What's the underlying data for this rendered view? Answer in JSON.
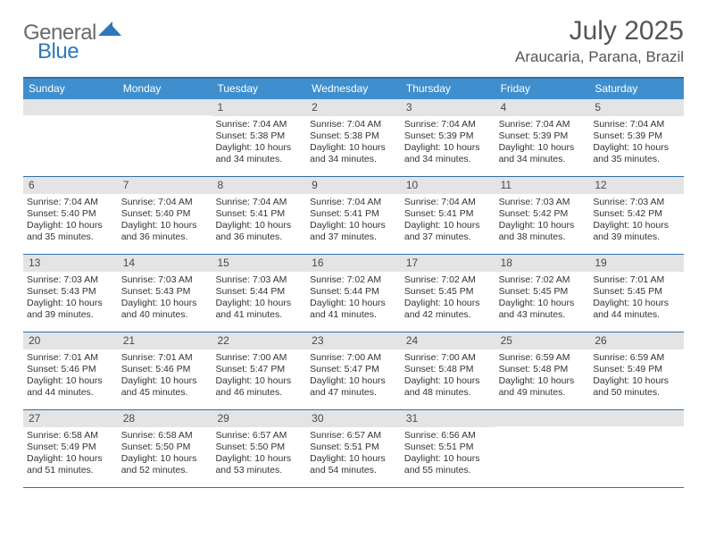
{
  "logo": {
    "general": "General",
    "blue": "Blue",
    "tri_color": "#2f77bb"
  },
  "header": {
    "month_title": "July 2025",
    "location": "Araucaria, Parana, Brazil"
  },
  "colors": {
    "header_bar": "#3f8fce",
    "rule": "#2f6fa8",
    "daynum_bg": "#e4e4e4",
    "dow_text": "#ffffff",
    "title_text": "#555555",
    "body_text": "#333333"
  },
  "dow": [
    "Sunday",
    "Monday",
    "Tuesday",
    "Wednesday",
    "Thursday",
    "Friday",
    "Saturday"
  ],
  "weeks": [
    [
      null,
      null,
      {
        "n": "1",
        "sr": "Sunrise: 7:04 AM",
        "ss": "Sunset: 5:38 PM",
        "dl": "Daylight: 10 hours and 34 minutes."
      },
      {
        "n": "2",
        "sr": "Sunrise: 7:04 AM",
        "ss": "Sunset: 5:38 PM",
        "dl": "Daylight: 10 hours and 34 minutes."
      },
      {
        "n": "3",
        "sr": "Sunrise: 7:04 AM",
        "ss": "Sunset: 5:39 PM",
        "dl": "Daylight: 10 hours and 34 minutes."
      },
      {
        "n": "4",
        "sr": "Sunrise: 7:04 AM",
        "ss": "Sunset: 5:39 PM",
        "dl": "Daylight: 10 hours and 34 minutes."
      },
      {
        "n": "5",
        "sr": "Sunrise: 7:04 AM",
        "ss": "Sunset: 5:39 PM",
        "dl": "Daylight: 10 hours and 35 minutes."
      }
    ],
    [
      {
        "n": "6",
        "sr": "Sunrise: 7:04 AM",
        "ss": "Sunset: 5:40 PM",
        "dl": "Daylight: 10 hours and 35 minutes."
      },
      {
        "n": "7",
        "sr": "Sunrise: 7:04 AM",
        "ss": "Sunset: 5:40 PM",
        "dl": "Daylight: 10 hours and 36 minutes."
      },
      {
        "n": "8",
        "sr": "Sunrise: 7:04 AM",
        "ss": "Sunset: 5:41 PM",
        "dl": "Daylight: 10 hours and 36 minutes."
      },
      {
        "n": "9",
        "sr": "Sunrise: 7:04 AM",
        "ss": "Sunset: 5:41 PM",
        "dl": "Daylight: 10 hours and 37 minutes."
      },
      {
        "n": "10",
        "sr": "Sunrise: 7:04 AM",
        "ss": "Sunset: 5:41 PM",
        "dl": "Daylight: 10 hours and 37 minutes."
      },
      {
        "n": "11",
        "sr": "Sunrise: 7:03 AM",
        "ss": "Sunset: 5:42 PM",
        "dl": "Daylight: 10 hours and 38 minutes."
      },
      {
        "n": "12",
        "sr": "Sunrise: 7:03 AM",
        "ss": "Sunset: 5:42 PM",
        "dl": "Daylight: 10 hours and 39 minutes."
      }
    ],
    [
      {
        "n": "13",
        "sr": "Sunrise: 7:03 AM",
        "ss": "Sunset: 5:43 PM",
        "dl": "Daylight: 10 hours and 39 minutes."
      },
      {
        "n": "14",
        "sr": "Sunrise: 7:03 AM",
        "ss": "Sunset: 5:43 PM",
        "dl": "Daylight: 10 hours and 40 minutes."
      },
      {
        "n": "15",
        "sr": "Sunrise: 7:03 AM",
        "ss": "Sunset: 5:44 PM",
        "dl": "Daylight: 10 hours and 41 minutes."
      },
      {
        "n": "16",
        "sr": "Sunrise: 7:02 AM",
        "ss": "Sunset: 5:44 PM",
        "dl": "Daylight: 10 hours and 41 minutes."
      },
      {
        "n": "17",
        "sr": "Sunrise: 7:02 AM",
        "ss": "Sunset: 5:45 PM",
        "dl": "Daylight: 10 hours and 42 minutes."
      },
      {
        "n": "18",
        "sr": "Sunrise: 7:02 AM",
        "ss": "Sunset: 5:45 PM",
        "dl": "Daylight: 10 hours and 43 minutes."
      },
      {
        "n": "19",
        "sr": "Sunrise: 7:01 AM",
        "ss": "Sunset: 5:45 PM",
        "dl": "Daylight: 10 hours and 44 minutes."
      }
    ],
    [
      {
        "n": "20",
        "sr": "Sunrise: 7:01 AM",
        "ss": "Sunset: 5:46 PM",
        "dl": "Daylight: 10 hours and 44 minutes."
      },
      {
        "n": "21",
        "sr": "Sunrise: 7:01 AM",
        "ss": "Sunset: 5:46 PM",
        "dl": "Daylight: 10 hours and 45 minutes."
      },
      {
        "n": "22",
        "sr": "Sunrise: 7:00 AM",
        "ss": "Sunset: 5:47 PM",
        "dl": "Daylight: 10 hours and 46 minutes."
      },
      {
        "n": "23",
        "sr": "Sunrise: 7:00 AM",
        "ss": "Sunset: 5:47 PM",
        "dl": "Daylight: 10 hours and 47 minutes."
      },
      {
        "n": "24",
        "sr": "Sunrise: 7:00 AM",
        "ss": "Sunset: 5:48 PM",
        "dl": "Daylight: 10 hours and 48 minutes."
      },
      {
        "n": "25",
        "sr": "Sunrise: 6:59 AM",
        "ss": "Sunset: 5:48 PM",
        "dl": "Daylight: 10 hours and 49 minutes."
      },
      {
        "n": "26",
        "sr": "Sunrise: 6:59 AM",
        "ss": "Sunset: 5:49 PM",
        "dl": "Daylight: 10 hours and 50 minutes."
      }
    ],
    [
      {
        "n": "27",
        "sr": "Sunrise: 6:58 AM",
        "ss": "Sunset: 5:49 PM",
        "dl": "Daylight: 10 hours and 51 minutes."
      },
      {
        "n": "28",
        "sr": "Sunrise: 6:58 AM",
        "ss": "Sunset: 5:50 PM",
        "dl": "Daylight: 10 hours and 52 minutes."
      },
      {
        "n": "29",
        "sr": "Sunrise: 6:57 AM",
        "ss": "Sunset: 5:50 PM",
        "dl": "Daylight: 10 hours and 53 minutes."
      },
      {
        "n": "30",
        "sr": "Sunrise: 6:57 AM",
        "ss": "Sunset: 5:51 PM",
        "dl": "Daylight: 10 hours and 54 minutes."
      },
      {
        "n": "31",
        "sr": "Sunrise: 6:56 AM",
        "ss": "Sunset: 5:51 PM",
        "dl": "Daylight: 10 hours and 55 minutes."
      },
      null,
      null
    ]
  ]
}
